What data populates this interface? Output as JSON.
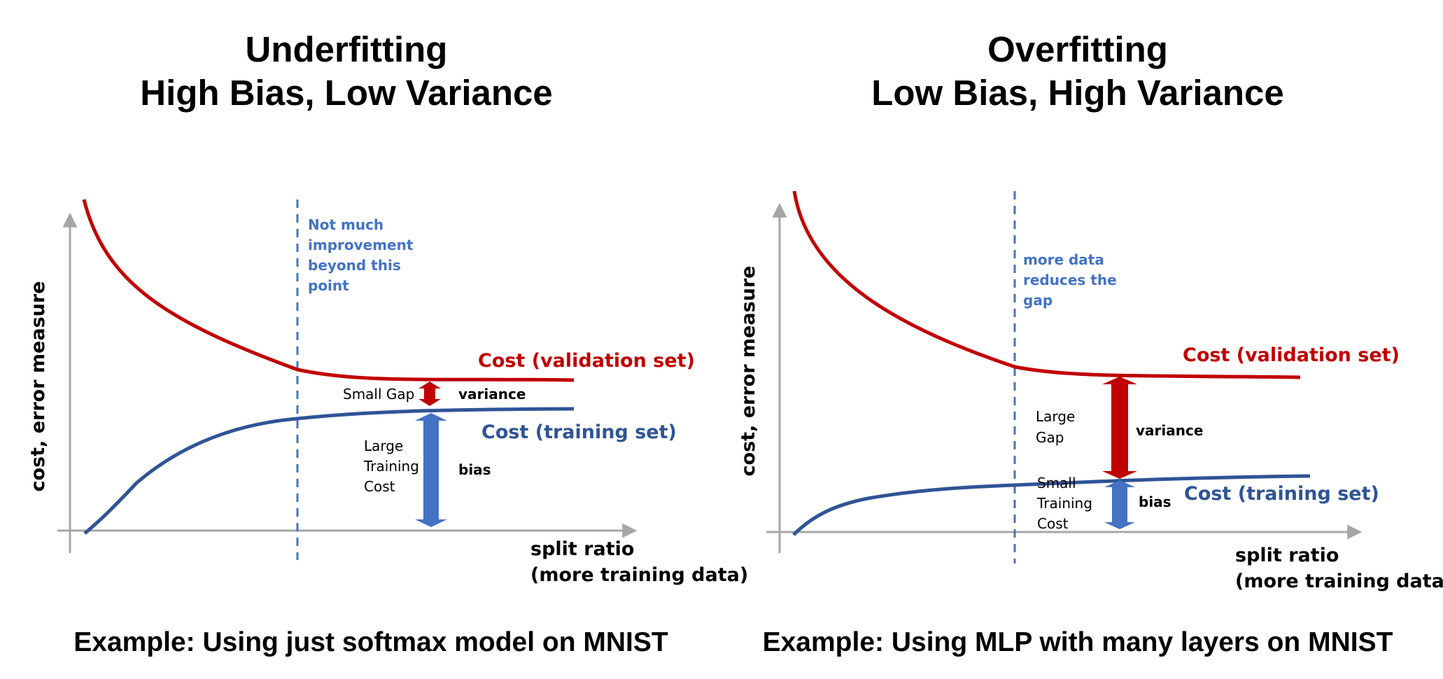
{
  "colors": {
    "validation": "#c00000",
    "training": "#2f5496",
    "annotation": "#4472c4",
    "axis": "#a6a6a6",
    "variance_arrow": "#c00000",
    "bias_arrow": "#4472c4"
  },
  "left": {
    "title_line1": "Underfitting",
    "title_line2": "High Bias, Low Variance",
    "ylabel": "cost, error measure",
    "xlabel_line1": "split ratio",
    "xlabel_line2": "(more training data)",
    "validation_label": "Cost (validation set)",
    "training_label": "Cost (training set)",
    "note_line1": "Not much",
    "note_line2": "improvement",
    "note_line3": "beyond this",
    "note_line4": "point",
    "gap_label": "Small Gap",
    "variance_label": "variance",
    "training_cost_line1": "Large",
    "training_cost_line2": "Training",
    "training_cost_line3": "Cost",
    "bias_label": "bias",
    "caption": "Example: Using just softmax model on MNIST"
  },
  "right": {
    "title_line1": "Overfitting",
    "title_line2": "Low Bias, High Variance",
    "ylabel": "cost, error measure",
    "xlabel_line1": "split ratio",
    "xlabel_line2": "(more training data)",
    "validation_label": "Cost (validation set)",
    "training_label": "Cost (training set)",
    "note_line1": "more data",
    "note_line2": "reduces the",
    "note_line3": "gap",
    "gap_label_line1": "Large",
    "gap_label_line2": "Gap",
    "variance_label": "variance",
    "training_cost_line1": "Small",
    "training_cost_line2": "Training",
    "training_cost_line3": "Cost",
    "bias_label": "bias",
    "caption": "Example: Using MLP with many layers on MNIST"
  }
}
